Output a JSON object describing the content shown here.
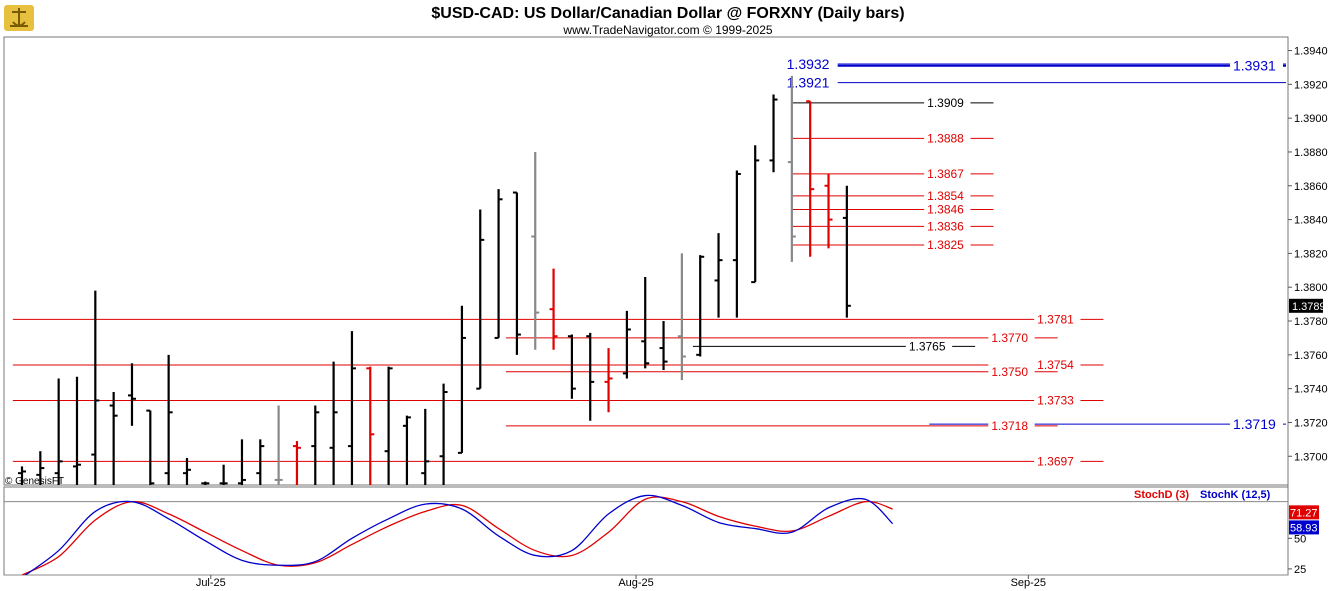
{
  "header": {
    "title": "$USD-CAD:  US Dollar/Canadian Dollar @ FORXNY  (Daily bars)",
    "subtitle": "www.TradeNavigator.com © 1999-2025",
    "watermark": "© GenesisFT"
  },
  "colors": {
    "up_bar": "#000000",
    "down_bar": "#e00000",
    "neutral_bar": "#888888",
    "blue_level": "#0000cc",
    "red_level": "#e00000",
    "black_level": "#000000",
    "stochD": "#e00000",
    "stochK": "#0000cc",
    "stochD_badge": "#e00000",
    "stochK_badge": "#0000cc"
  },
  "chart_data": [
    {
      "type": "ohlc",
      "ylim": [
        1.3683,
        1.3948
      ],
      "y_ticks": [
        "1.3940",
        "1.3920",
        "1.3900",
        "1.3880",
        "1.3860",
        "1.3840",
        "1.3820",
        "1.3800",
        "1.3780",
        "1.3760",
        "1.3740",
        "1.3720",
        "1.3700"
      ],
      "y_tick_values": [
        1.394,
        1.392,
        1.39,
        1.388,
        1.386,
        1.384,
        1.382,
        1.38,
        1.378,
        1.376,
        1.374,
        1.372,
        1.37
      ],
      "x_labels": [
        {
          "label": "Jul-25",
          "index": 10.3
        },
        {
          "label": "Aug-25",
          "index": 33.5
        },
        {
          "label": "Sep-25",
          "index": 54.9
        }
      ],
      "last_price": "1.3789",
      "bars": [
        {
          "open": 1.369,
          "high": 1.3694,
          "low": 1.3683,
          "close": 1.3691,
          "color": "up"
        },
        {
          "open": 1.3689,
          "high": 1.3703,
          "low": 1.3683,
          "close": 1.3693,
          "color": "up"
        },
        {
          "open": 1.369,
          "high": 1.3746,
          "low": 1.3683,
          "close": 1.3697,
          "color": "up"
        },
        {
          "open": 1.3694,
          "high": 1.3747,
          "low": 1.3683,
          "close": 1.3695,
          "color": "up"
        },
        {
          "open": 1.3701,
          "high": 1.3798,
          "low": 1.3683,
          "close": 1.3733,
          "color": "up"
        },
        {
          "open": 1.373,
          "high": 1.3738,
          "low": 1.3683,
          "close": 1.3724,
          "color": "up"
        },
        {
          "open": 1.3736,
          "high": 1.3755,
          "low": 1.3718,
          "close": 1.3734,
          "color": "up"
        },
        {
          "open": 1.3727,
          "high": 1.3727,
          "low": 1.3683,
          "close": 1.3684,
          "color": "up"
        },
        {
          "open": 1.369,
          "high": 1.376,
          "low": 1.3683,
          "close": 1.3726,
          "color": "up"
        },
        {
          "open": 1.369,
          "high": 1.3699,
          "low": 1.3683,
          "close": 1.3692,
          "color": "up"
        },
        {
          "open": 1.3684,
          "high": 1.3685,
          "low": 1.3683,
          "close": 1.3684,
          "color": "up"
        },
        {
          "open": 1.3684,
          "high": 1.3695,
          "low": 1.3683,
          "close": 1.3684,
          "color": "up"
        },
        {
          "open": 1.3684,
          "high": 1.371,
          "low": 1.3683,
          "close": 1.3686,
          "color": "up"
        },
        {
          "open": 1.369,
          "high": 1.371,
          "low": 1.3683,
          "close": 1.3706,
          "color": "up"
        },
        {
          "open": 1.3686,
          "high": 1.373,
          "low": 1.3683,
          "close": 1.3686,
          "color": "neutral"
        },
        {
          "open": 1.3706,
          "high": 1.3709,
          "low": 1.3683,
          "close": 1.3705,
          "color": "down"
        },
        {
          "open": 1.3706,
          "high": 1.373,
          "low": 1.3683,
          "close": 1.3726,
          "color": "up"
        },
        {
          "open": 1.3705,
          "high": 1.3756,
          "low": 1.3683,
          "close": 1.3726,
          "color": "up"
        },
        {
          "open": 1.3706,
          "high": 1.3774,
          "low": 1.3683,
          "close": 1.3752,
          "color": "up"
        },
        {
          "open": 1.3752,
          "high": 1.3753,
          "low": 1.3683,
          "close": 1.3713,
          "color": "down"
        },
        {
          "open": 1.3703,
          "high": 1.3753,
          "low": 1.3683,
          "close": 1.3752,
          "color": "up"
        },
        {
          "open": 1.3718,
          "high": 1.3724,
          "low": 1.3683,
          "close": 1.3723,
          "color": "up"
        },
        {
          "open": 1.369,
          "high": 1.3728,
          "low": 1.3683,
          "close": 1.3697,
          "color": "up"
        },
        {
          "open": 1.37,
          "high": 1.3743,
          "low": 1.3683,
          "close": 1.3738,
          "color": "up"
        },
        {
          "open": 1.3702,
          "high": 1.3789,
          "low": 1.3702,
          "close": 1.377,
          "color": "up"
        },
        {
          "open": 1.374,
          "high": 1.3846,
          "low": 1.374,
          "close": 1.3828,
          "color": "up"
        },
        {
          "open": 1.377,
          "high": 1.3858,
          "low": 1.377,
          "close": 1.3852,
          "color": "up"
        },
        {
          "open": 1.3856,
          "high": 1.3856,
          "low": 1.376,
          "close": 1.3772,
          "color": "up"
        },
        {
          "open": 1.383,
          "high": 1.388,
          "low": 1.3763,
          "close": 1.3785,
          "color": "neutral"
        },
        {
          "open": 1.3787,
          "high": 1.3811,
          "low": 1.3763,
          "close": 1.3771,
          "color": "down"
        },
        {
          "open": 1.3771,
          "high": 1.3772,
          "low": 1.3734,
          "close": 1.374,
          "color": "up"
        },
        {
          "open": 1.3771,
          "high": 1.3773,
          "low": 1.3721,
          "close": 1.3744,
          "color": "up"
        },
        {
          "open": 1.3744,
          "high": 1.3764,
          "low": 1.3726,
          "close": 1.3746,
          "color": "down"
        },
        {
          "open": 1.3749,
          "high": 1.3786,
          "low": 1.3746,
          "close": 1.3775,
          "color": "up"
        },
        {
          "open": 1.3768,
          "high": 1.3806,
          "low": 1.3752,
          "close": 1.3755,
          "color": "up"
        },
        {
          "open": 1.3764,
          "high": 1.378,
          "low": 1.3751,
          "close": 1.3756,
          "color": "up"
        },
        {
          "open": 1.3771,
          "high": 1.382,
          "low": 1.3745,
          "close": 1.3759,
          "color": "neutral"
        },
        {
          "open": 1.376,
          "high": 1.3819,
          "low": 1.3759,
          "close": 1.3818,
          "color": "up"
        },
        {
          "open": 1.3804,
          "high": 1.3832,
          "low": 1.3782,
          "close": 1.3816,
          "color": "up"
        },
        {
          "open": 1.3816,
          "high": 1.3869,
          "low": 1.3782,
          "close": 1.3867,
          "color": "up"
        },
        {
          "open": 1.3803,
          "high": 1.3884,
          "low": 1.3803,
          "close": 1.3875,
          "color": "up"
        },
        {
          "open": 1.3875,
          "high": 1.3914,
          "low": 1.3868,
          "close": 1.3911,
          "color": "up"
        },
        {
          "open": 1.3874,
          "high": 1.3925,
          "low": 1.3815,
          "close": 1.383,
          "color": "neutral"
        },
        {
          "open": 1.391,
          "high": 1.391,
          "low": 1.3818,
          "close": 1.3858,
          "color": "down"
        },
        {
          "open": 1.386,
          "high": 1.3867,
          "low": 1.3823,
          "close": 1.384,
          "color": "down"
        },
        {
          "open": 1.3841,
          "high": 1.386,
          "low": 1.3782,
          "close": 1.3789,
          "color": "up"
        }
      ],
      "levels": [
        {
          "value": 1.3932,
          "label": "1.3932",
          "color": "blue",
          "from": 44.5,
          "to": 70,
          "label_side": "left"
        },
        {
          "value": 1.3931,
          "label": "1.3931",
          "color": "blue",
          "from": 44.5,
          "to": 70,
          "label_side": "right"
        },
        {
          "value": 1.3921,
          "label": "1.3921",
          "color": "blue",
          "from": 44.5,
          "to": 70,
          "label_side": "left"
        },
        {
          "value": 1.3909,
          "label": "1.3909",
          "color": "black",
          "from": 42,
          "to": 53,
          "label_side": "label"
        },
        {
          "value": 1.3888,
          "label": "1.3888",
          "color": "red",
          "from": 42,
          "to": 53,
          "label_side": "label"
        },
        {
          "value": 1.3867,
          "label": "1.3867",
          "color": "red",
          "from": 42,
          "to": 53,
          "label_side": "label"
        },
        {
          "value": 1.3854,
          "label": "1.3854",
          "color": "red",
          "from": 42,
          "to": 53,
          "label_side": "label"
        },
        {
          "value": 1.3846,
          "label": "1.3846",
          "color": "red",
          "from": 42,
          "to": 53,
          "label_side": "label"
        },
        {
          "value": 1.3836,
          "label": "1.3836",
          "color": "red",
          "from": 42,
          "to": 53,
          "label_side": "label"
        },
        {
          "value": 1.3825,
          "label": "1.3825",
          "color": "red",
          "from": 42,
          "to": 53,
          "label_side": "label"
        },
        {
          "value": 1.3781,
          "label": "1.3781",
          "color": "red",
          "from": -0.5,
          "to": 59,
          "label_side": "label"
        },
        {
          "value": 1.377,
          "label": "1.3770",
          "color": "red",
          "from": 26.4,
          "to": 56.5,
          "label_side": "label"
        },
        {
          "value": 1.3765,
          "label": "1.3765",
          "color": "black",
          "from": 36.6,
          "to": 52,
          "label_side": "label"
        },
        {
          "value": 1.3754,
          "label": "1.3754",
          "color": "red",
          "from": -0.5,
          "to": 59,
          "label_side": "label"
        },
        {
          "value": 1.375,
          "label": "1.3750",
          "color": "red",
          "from": 26.4,
          "to": 56.5,
          "label_side": "label"
        },
        {
          "value": 1.3733,
          "label": "1.3733",
          "color": "red",
          "from": -0.5,
          "to": 59,
          "label_side": "label"
        },
        {
          "value": 1.3719,
          "label": "1.3719",
          "color": "blue",
          "from": 49.5,
          "to": 70,
          "label_side": "right"
        },
        {
          "value": 1.3718,
          "label": "1.3718",
          "color": "red",
          "from": 26.4,
          "to": 56.5,
          "label_side": "label"
        },
        {
          "value": 1.3697,
          "label": "1.3697",
          "color": "red",
          "from": -0.5,
          "to": 59,
          "label_side": "label"
        }
      ]
    },
    {
      "type": "line",
      "title": "",
      "ylim": [
        20,
        92
      ],
      "y_ticks": [
        "50",
        "25"
      ],
      "y_tick_values": [
        50,
        25
      ],
      "ref_lines": [
        20,
        80
      ],
      "legend": [
        {
          "name": "StochD (3)",
          "color": "red"
        },
        {
          "name": "StochK (12,5)",
          "color": "blue"
        }
      ],
      "badges": [
        {
          "label": "71.27",
          "value": 71.27,
          "color": "red"
        },
        {
          "label": "58.93",
          "value": 58.93,
          "color": "blue"
        }
      ],
      "series": [
        {
          "name": "StochD (3)",
          "x": [
            0,
            2,
            4,
            6,
            8,
            10,
            12,
            14,
            16,
            18,
            20,
            22,
            24,
            26,
            28,
            30,
            32,
            34,
            36,
            38,
            40,
            42,
            44,
            46,
            47.5
          ],
          "values": [
            20,
            35,
            65,
            80,
            70,
            55,
            40,
            28,
            30,
            45,
            60,
            72,
            77,
            58,
            40,
            36,
            55,
            82,
            80,
            68,
            60,
            56,
            68,
            80,
            74
          ]
        },
        {
          "name": "StochK (12,5)",
          "x": [
            0,
            2,
            4,
            6,
            8,
            10,
            12,
            14,
            16,
            18,
            20,
            22,
            24,
            26,
            28,
            30,
            32,
            34,
            36,
            38,
            40,
            42,
            44,
            46,
            47.5
          ],
          "values": [
            18,
            40,
            72,
            80,
            66,
            48,
            32,
            28,
            31,
            50,
            66,
            78,
            74,
            52,
            36,
            40,
            70,
            85,
            77,
            63,
            58,
            55,
            75,
            82,
            62
          ]
        }
      ]
    }
  ]
}
